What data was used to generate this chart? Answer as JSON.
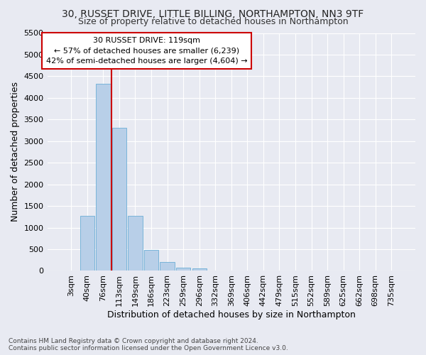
{
  "title_line1": "30, RUSSET DRIVE, LITTLE BILLING, NORTHAMPTON, NN3 9TF",
  "title_line2": "Size of property relative to detached houses in Northampton",
  "xlabel": "Distribution of detached houses by size in Northampton",
  "ylabel": "Number of detached properties",
  "footnote": "Contains HM Land Registry data © Crown copyright and database right 2024.\nContains public sector information licensed under the Open Government Licence v3.0.",
  "bar_labels": [
    "3sqm",
    "40sqm",
    "76sqm",
    "113sqm",
    "149sqm",
    "186sqm",
    "223sqm",
    "259sqm",
    "296sqm",
    "332sqm",
    "369sqm",
    "406sqm",
    "442sqm",
    "479sqm",
    "515sqm",
    "552sqm",
    "589sqm",
    "625sqm",
    "662sqm",
    "698sqm",
    "735sqm"
  ],
  "bar_values": [
    0,
    1270,
    4330,
    3300,
    1270,
    490,
    210,
    80,
    55,
    0,
    0,
    0,
    0,
    0,
    0,
    0,
    0,
    0,
    0,
    0,
    0
  ],
  "bar_color": "#b8cfe8",
  "bar_edge_color": "#6baed6",
  "background_color": "#e8eaf2",
  "grid_color": "#ffffff",
  "vline_color": "#cc0000",
  "annotation_text": "30 RUSSET DRIVE: 119sqm\n← 57% of detached houses are smaller (6,239)\n42% of semi-detached houses are larger (4,604) →",
  "annotation_box_color": "#ffffff",
  "annotation_box_edge_color": "#cc0000",
  "ylim": [
    0,
    5500
  ],
  "yticks": [
    0,
    500,
    1000,
    1500,
    2000,
    2500,
    3000,
    3500,
    4000,
    4500,
    5000,
    5500
  ],
  "title_fontsize": 10,
  "subtitle_fontsize": 9,
  "axis_label_fontsize": 9,
  "tick_fontsize": 8,
  "annotation_fontsize": 8,
  "footnote_fontsize": 6.5
}
